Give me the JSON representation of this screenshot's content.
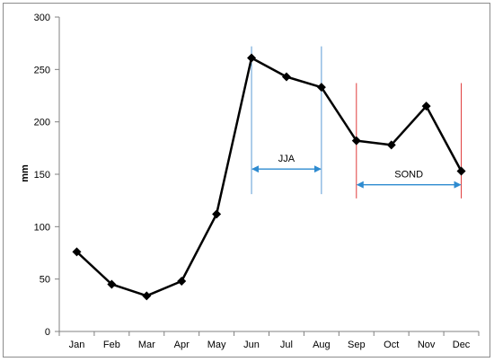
{
  "chart_data": {
    "type": "line",
    "title": "",
    "xlabel": "",
    "ylabel": "mm",
    "categories": [
      "Jan",
      "Feb",
      "Mar",
      "Apr",
      "May",
      "Jun",
      "Jul",
      "Aug",
      "Sep",
      "Oct",
      "Nov",
      "Dec"
    ],
    "series": [
      {
        "values": [
          76,
          45,
          34,
          48,
          112,
          261,
          243,
          233,
          182,
          178,
          215,
          153
        ],
        "color": "#000000",
        "marker": "diamond"
      }
    ],
    "ylim": [
      0,
      300
    ],
    "yticks": [
      0,
      50,
      100,
      150,
      200,
      250,
      300
    ],
    "grid": false,
    "legend": "none",
    "annotations": [
      {
        "label": "JJA",
        "from": "Jun",
        "to": "Aug",
        "bar_color": "#5b9bd5",
        "arrow_color": "#2e8bd0",
        "arrow_y": 155,
        "bar_range": [
          131,
          272
        ]
      },
      {
        "label": "SOND",
        "from": "Sep",
        "to": "Dec",
        "bar_color": "#e03c3c",
        "arrow_color": "#2e8bd0",
        "arrow_y": 140,
        "bar_range": [
          127,
          237
        ]
      }
    ]
  }
}
